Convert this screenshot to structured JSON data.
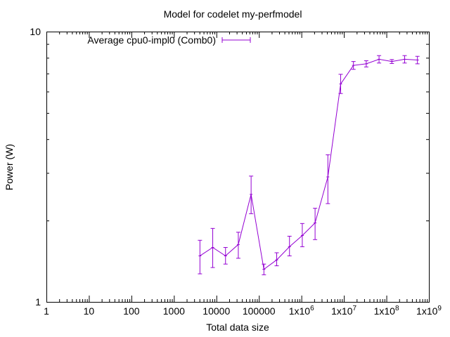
{
  "chart_data": {
    "type": "line",
    "title": "Model for codelet my-perfmodel",
    "xlabel": "Total data size",
    "ylabel": "Power (W)",
    "x_scale": "log",
    "y_scale": "log",
    "xlim": [
      1,
      1000000000
    ],
    "ylim": [
      1,
      10
    ],
    "grid": false,
    "legend_position": "top-left",
    "x_ticks": [
      {
        "value": 1,
        "label": "1"
      },
      {
        "value": 10,
        "label": "10"
      },
      {
        "value": 100,
        "label": "100"
      },
      {
        "value": 1000,
        "label": "1000"
      },
      {
        "value": 10000,
        "label": "10000"
      },
      {
        "value": 100000,
        "label": "100000"
      },
      {
        "value": 1000000,
        "label": "1x10",
        "exp": "6"
      },
      {
        "value": 10000000,
        "label": "1x10",
        "exp": "7"
      },
      {
        "value": 100000000,
        "label": "1x10",
        "exp": "8"
      },
      {
        "value": 1000000000,
        "label": "1x10",
        "exp": "9"
      }
    ],
    "y_ticks": [
      {
        "value": 1,
        "label": "1"
      },
      {
        "value": 10,
        "label": "10"
      }
    ],
    "series": [
      {
        "name": "Average cpu0-impl0 (Comb0)",
        "color": "#9400d3",
        "points": [
          {
            "x": 4096,
            "y": 1.48,
            "ylow": 1.27,
            "yhigh": 1.69
          },
          {
            "x": 8192,
            "y": 1.59,
            "ylow": 1.34,
            "yhigh": 1.87
          },
          {
            "x": 16384,
            "y": 1.48,
            "ylow": 1.38,
            "yhigh": 1.59
          },
          {
            "x": 32768,
            "y": 1.63,
            "ylow": 1.45,
            "yhigh": 1.81
          },
          {
            "x": 65536,
            "y": 2.5,
            "ylow": 2.12,
            "yhigh": 2.92
          },
          {
            "x": 131072,
            "y": 1.32,
            "ylow": 1.26,
            "yhigh": 1.38
          },
          {
            "x": 262144,
            "y": 1.43,
            "ylow": 1.36,
            "yhigh": 1.52
          },
          {
            "x": 524288,
            "y": 1.6,
            "ylow": 1.48,
            "yhigh": 1.75
          },
          {
            "x": 1048576,
            "y": 1.76,
            "ylow": 1.6,
            "yhigh": 1.95
          },
          {
            "x": 2097152,
            "y": 1.96,
            "ylow": 1.7,
            "yhigh": 2.22
          },
          {
            "x": 4194304,
            "y": 2.9,
            "ylow": 2.31,
            "yhigh": 3.5
          },
          {
            "x": 8388608,
            "y": 6.4,
            "ylow": 5.9,
            "yhigh": 6.95
          },
          {
            "x": 16777216,
            "y": 7.5,
            "ylow": 7.25,
            "yhigh": 7.75
          },
          {
            "x": 33554432,
            "y": 7.6,
            "ylow": 7.4,
            "yhigh": 7.8
          },
          {
            "x": 67108864,
            "y": 7.9,
            "ylow": 7.65,
            "yhigh": 8.15
          },
          {
            "x": 134217728,
            "y": 7.75,
            "ylow": 7.62,
            "yhigh": 7.88
          },
          {
            "x": 268435456,
            "y": 7.9,
            "ylow": 7.65,
            "yhigh": 8.15
          },
          {
            "x": 536870912,
            "y": 7.85,
            "ylow": 7.6,
            "yhigh": 8.1
          }
        ]
      }
    ]
  }
}
